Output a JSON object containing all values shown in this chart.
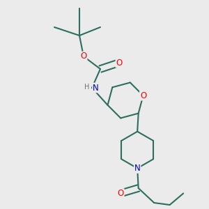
{
  "background_color": "#ebebeb",
  "bond_color": "#2d6e5e",
  "atom_colors": {
    "O": "#ff0000",
    "N": "#0000bb",
    "H": "#707070",
    "C": "#2d6e5e"
  },
  "figsize": [
    3.0,
    3.0
  ],
  "dpi": 100,
  "lw": 1.5,
  "fs": 8.5
}
